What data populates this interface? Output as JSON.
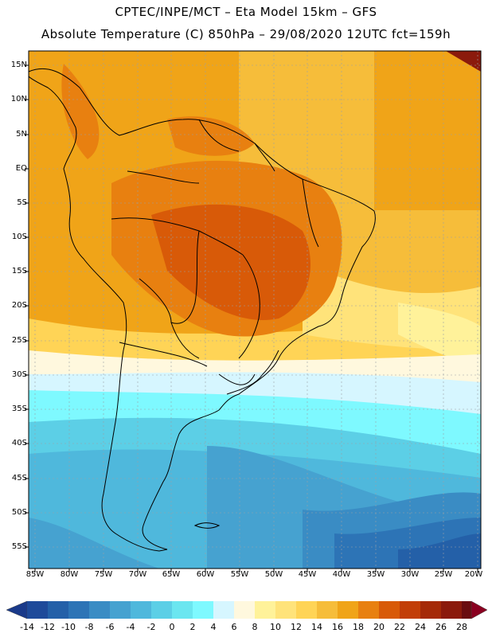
{
  "header": {
    "line1": "CPTEC/INPE/MCT –   Eta Model 15km – GFS",
    "line2": "Absolute Temperature (C) 850hPa – 29/08/2020 12UTC fct=159h"
  },
  "map": {
    "lat_labels": [
      "15N",
      "10N",
      "5N",
      "EQ",
      "5S",
      "10S",
      "15S",
      "20S",
      "25S",
      "30S",
      "35S",
      "40S",
      "45S",
      "50S",
      "55S"
    ],
    "lon_labels": [
      "85W",
      "80W",
      "75W",
      "70W",
      "65W",
      "60W",
      "55W",
      "50W",
      "45W",
      "40W",
      "35W",
      "30W",
      "25W",
      "20W"
    ],
    "colors": {
      "land_border": "#000000",
      "grid": "#9aa0a6"
    }
  },
  "colorbar": {
    "labels": [
      "-14",
      "-12",
      "-10",
      "-8",
      "-6",
      "-4",
      "-2",
      "0",
      "2",
      "4",
      "6",
      "8",
      "10",
      "12",
      "14",
      "16",
      "18",
      "20",
      "22",
      "24",
      "26",
      "28"
    ],
    "colors": [
      "#1a3a8a",
      "#1e4a9a",
      "#2460a8",
      "#2d74b6",
      "#3a8cc4",
      "#46a2d0",
      "#4fb8dc",
      "#5ccfe6",
      "#6be6f0",
      "#7ef9ff",
      "#d6f6ff",
      "#fff8de",
      "#fff29a",
      "#ffe37a",
      "#ffd456",
      "#f6bd3a",
      "#f0a418",
      "#e88010",
      "#d85a08",
      "#c23e08",
      "#a52a08",
      "#8b1a0c",
      "#6a0d10",
      "#8a0020"
    ]
  }
}
